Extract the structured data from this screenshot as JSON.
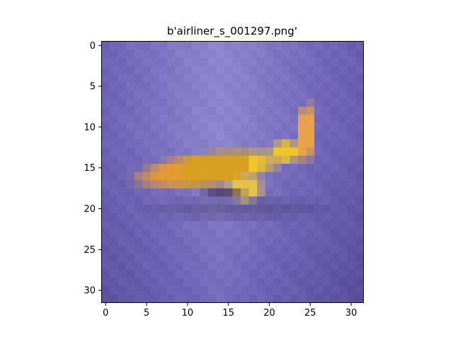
{
  "figure": {
    "title": "b'airliner_s_001297.png'"
  },
  "image": {
    "subject": "yellow airliner on purple-blue background",
    "grid_size": [
      32,
      32
    ],
    "colors": {
      "background_light": "#8e86cc",
      "background_mid": "#6f66b8",
      "background_dark": "#5a519e",
      "plane_yellow": "#f2c62a",
      "plane_orange": "#e39a34",
      "plane_gold": "#d7a020",
      "shadow": "#3a2c58"
    }
  },
  "axes": {
    "x_ticks": [
      "0",
      "5",
      "10",
      "15",
      "20",
      "25",
      "30"
    ],
    "y_ticks": [
      "0",
      "5",
      "10",
      "15",
      "20",
      "25",
      "30"
    ]
  }
}
